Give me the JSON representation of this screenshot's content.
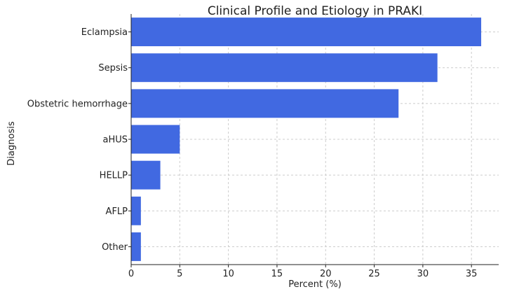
{
  "chart_data": {
    "type": "bar",
    "orientation": "horizontal",
    "title": "Clinical Profile and Etiology in PRAKI",
    "xlabel": "Percent (%)",
    "ylabel": "Diagnosis",
    "categories": [
      "Eclampsia",
      "Sepsis",
      "Obstetric hemorrhage",
      "aHUS",
      "HELLP",
      "AFLP",
      "Other"
    ],
    "values": [
      36,
      31.5,
      27.5,
      5,
      3,
      1,
      1
    ],
    "xlim": [
      0,
      37.8
    ],
    "xticks": [
      0,
      5,
      10,
      15,
      20,
      25,
      30,
      35
    ],
    "grid": true,
    "bar_color": "#4169e1"
  }
}
